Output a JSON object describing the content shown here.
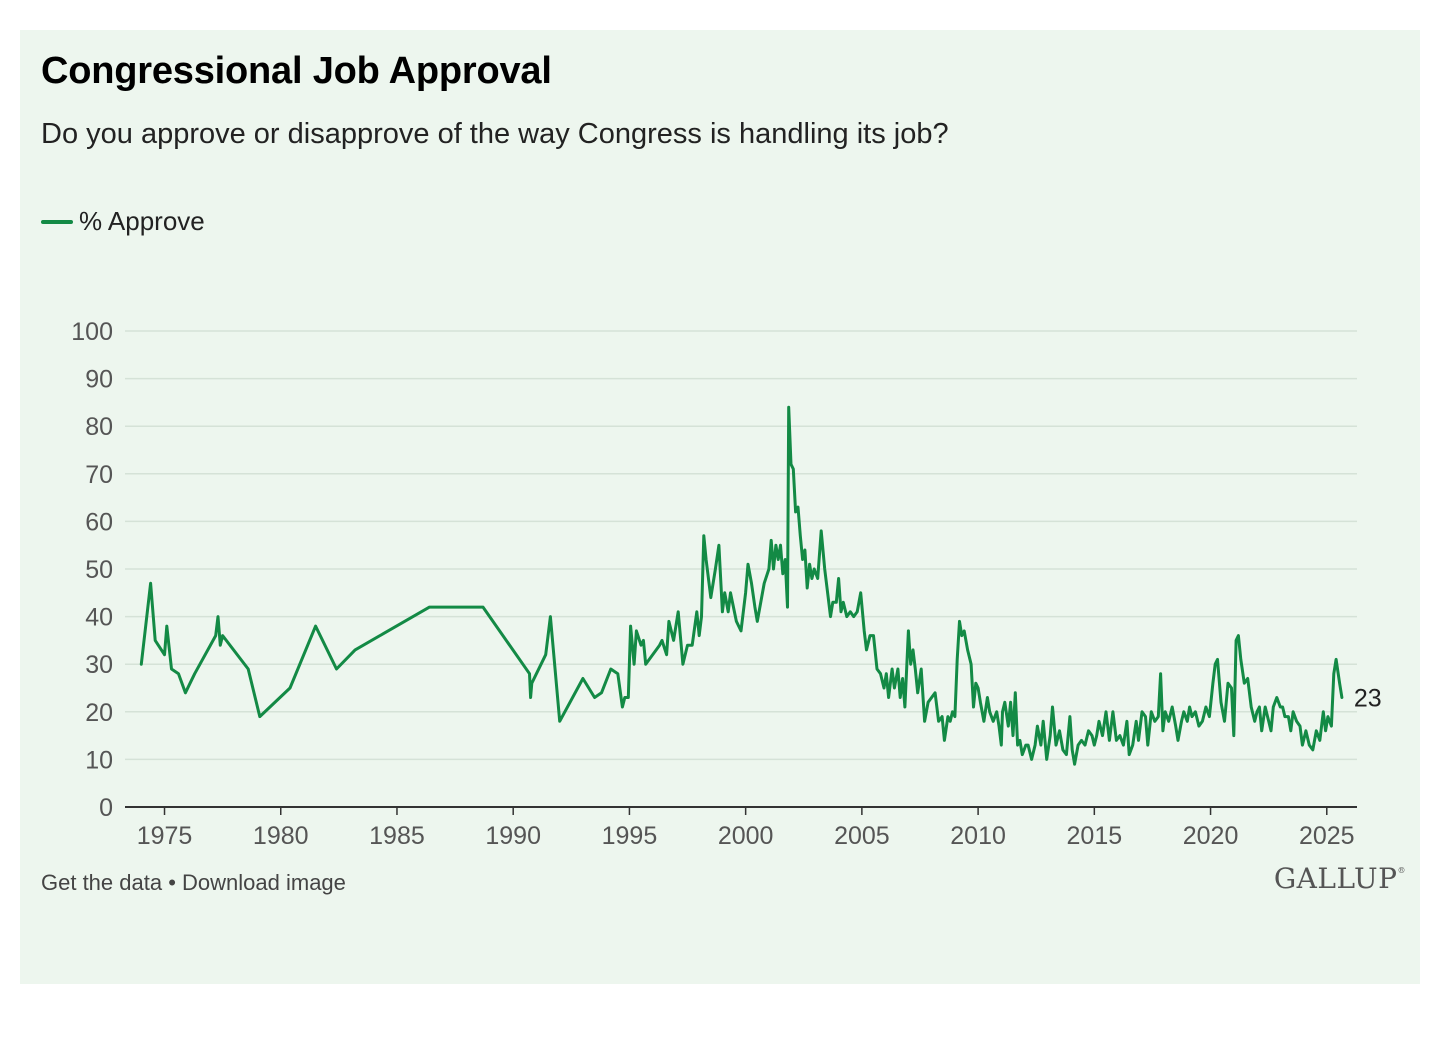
{
  "card": {
    "title": "Congressional Job Approval",
    "subtitle": "Do you approve or disapprove of the way Congress is handling its job?",
    "legend_label": "% Approve",
    "footer": {
      "get_data": "Get the data",
      "separator": " • ",
      "download": "Download image"
    },
    "logo_text": "GALLUP",
    "logo_mark": "®"
  },
  "colors": {
    "background": "#edf6ee",
    "series": "#138a45",
    "grid": "#d5e2d7",
    "axis": "#333333",
    "tick_text": "#555555"
  },
  "chart_data": {
    "type": "line",
    "title": "Congressional Job Approval",
    "xlabel": "",
    "ylabel": "",
    "xlim": [
      1973.3,
      2026.3
    ],
    "ylim": [
      0,
      100
    ],
    "yticks": [
      0,
      10,
      20,
      30,
      40,
      50,
      60,
      70,
      80,
      90,
      100
    ],
    "xticks": [
      1975,
      1980,
      1985,
      1990,
      1995,
      2000,
      2005,
      2010,
      2015,
      2020,
      2025
    ],
    "grid": true,
    "legend_position": "top-left",
    "end_label": "23",
    "series": [
      {
        "name": "% Approve",
        "points": [
          [
            1974.0,
            30
          ],
          [
            1974.4,
            47
          ],
          [
            1974.6,
            35
          ],
          [
            1975.0,
            32
          ],
          [
            1975.1,
            38
          ],
          [
            1975.3,
            29
          ],
          [
            1975.6,
            28
          ],
          [
            1975.9,
            24
          ],
          [
            1976.3,
            28
          ],
          [
            1977.2,
            36
          ],
          [
            1977.3,
            40
          ],
          [
            1977.4,
            34
          ],
          [
            1977.5,
            36
          ],
          [
            1978.6,
            29
          ],
          [
            1979.1,
            19
          ],
          [
            1980.4,
            25
          ],
          [
            1981.5,
            38
          ],
          [
            1982.4,
            29
          ],
          [
            1983.2,
            33
          ],
          [
            1986.4,
            42
          ],
          [
            1988.7,
            42
          ],
          [
            1990.7,
            28
          ],
          [
            1990.75,
            23
          ],
          [
            1990.8,
            26
          ],
          [
            1991.4,
            32
          ],
          [
            1991.6,
            40
          ],
          [
            1992.0,
            18
          ],
          [
            1993.0,
            27
          ],
          [
            1993.5,
            23
          ],
          [
            1993.8,
            24
          ],
          [
            1994.2,
            29
          ],
          [
            1994.5,
            28
          ],
          [
            1994.7,
            21
          ],
          [
            1994.8,
            23
          ],
          [
            1994.95,
            23
          ],
          [
            1995.05,
            38
          ],
          [
            1995.2,
            30
          ],
          [
            1995.3,
            37
          ],
          [
            1995.5,
            34
          ],
          [
            1995.6,
            35
          ],
          [
            1995.7,
            30
          ],
          [
            1996.3,
            34
          ],
          [
            1996.4,
            35
          ],
          [
            1996.6,
            32
          ],
          [
            1996.7,
            39
          ],
          [
            1996.9,
            35
          ],
          [
            1997.1,
            41
          ],
          [
            1997.3,
            30
          ],
          [
            1997.5,
            34
          ],
          [
            1997.7,
            34
          ],
          [
            1997.9,
            41
          ],
          [
            1998.0,
            36
          ],
          [
            1998.1,
            40
          ],
          [
            1998.2,
            57
          ],
          [
            1998.3,
            52
          ],
          [
            1998.5,
            44
          ],
          [
            1998.7,
            50
          ],
          [
            1998.85,
            55
          ],
          [
            1999.0,
            41
          ],
          [
            1999.1,
            45
          ],
          [
            1999.25,
            41
          ],
          [
            1999.35,
            45
          ],
          [
            1999.6,
            39
          ],
          [
            1999.8,
            37
          ],
          [
            2000.0,
            45
          ],
          [
            2000.1,
            51
          ],
          [
            2000.25,
            47
          ],
          [
            2000.4,
            42
          ],
          [
            2000.5,
            39
          ],
          [
            2000.8,
            47
          ],
          [
            2001.0,
            50
          ],
          [
            2001.1,
            56
          ],
          [
            2001.2,
            50
          ],
          [
            2001.3,
            55
          ],
          [
            2001.4,
            52
          ],
          [
            2001.5,
            55
          ],
          [
            2001.6,
            49
          ],
          [
            2001.7,
            52
          ],
          [
            2001.8,
            42
          ],
          [
            2001.85,
            84
          ],
          [
            2001.95,
            72
          ],
          [
            2002.05,
            71
          ],
          [
            2002.15,
            62
          ],
          [
            2002.25,
            63
          ],
          [
            2002.35,
            57
          ],
          [
            2002.45,
            52
          ],
          [
            2002.55,
            54
          ],
          [
            2002.65,
            46
          ],
          [
            2002.75,
            51
          ],
          [
            2002.85,
            48
          ],
          [
            2002.95,
            50
          ],
          [
            2003.1,
            48
          ],
          [
            2003.25,
            58
          ],
          [
            2003.4,
            50
          ],
          [
            2003.55,
            44
          ],
          [
            2003.65,
            40
          ],
          [
            2003.75,
            43
          ],
          [
            2003.9,
            43
          ],
          [
            2004.0,
            48
          ],
          [
            2004.1,
            41
          ],
          [
            2004.2,
            43
          ],
          [
            2004.35,
            40
          ],
          [
            2004.5,
            41
          ],
          [
            2004.65,
            40
          ],
          [
            2004.8,
            41
          ],
          [
            2004.95,
            45
          ],
          [
            2005.1,
            37
          ],
          [
            2005.2,
            33
          ],
          [
            2005.35,
            36
          ],
          [
            2005.5,
            36
          ],
          [
            2005.65,
            29
          ],
          [
            2005.8,
            28
          ],
          [
            2005.95,
            25
          ],
          [
            2006.05,
            28
          ],
          [
            2006.15,
            23
          ],
          [
            2006.3,
            29
          ],
          [
            2006.4,
            25
          ],
          [
            2006.55,
            29
          ],
          [
            2006.65,
            23
          ],
          [
            2006.75,
            27
          ],
          [
            2006.85,
            21
          ],
          [
            2007.0,
            37
          ],
          [
            2007.1,
            30
          ],
          [
            2007.2,
            33
          ],
          [
            2007.3,
            29
          ],
          [
            2007.4,
            24
          ],
          [
            2007.55,
            29
          ],
          [
            2007.7,
            18
          ],
          [
            2007.85,
            22
          ],
          [
            2008.0,
            23
          ],
          [
            2008.15,
            24
          ],
          [
            2008.3,
            18
          ],
          [
            2008.45,
            19
          ],
          [
            2008.55,
            14
          ],
          [
            2008.7,
            19
          ],
          [
            2008.8,
            18
          ],
          [
            2008.9,
            20
          ],
          [
            2009.0,
            19
          ],
          [
            2009.1,
            31
          ],
          [
            2009.2,
            39
          ],
          [
            2009.3,
            36
          ],
          [
            2009.4,
            37
          ],
          [
            2009.55,
            33
          ],
          [
            2009.7,
            30
          ],
          [
            2009.8,
            21
          ],
          [
            2009.9,
            26
          ],
          [
            2010.0,
            25
          ],
          [
            2010.1,
            22
          ],
          [
            2010.25,
            18
          ],
          [
            2010.4,
            23
          ],
          [
            2010.5,
            20
          ],
          [
            2010.65,
            18
          ],
          [
            2010.8,
            20
          ],
          [
            2010.9,
            17
          ],
          [
            2011.0,
            13
          ],
          [
            2011.05,
            20
          ],
          [
            2011.15,
            22
          ],
          [
            2011.3,
            17
          ],
          [
            2011.4,
            22
          ],
          [
            2011.5,
            15
          ],
          [
            2011.6,
            24
          ],
          [
            2011.7,
            13
          ],
          [
            2011.8,
            14
          ],
          [
            2011.9,
            11
          ],
          [
            2012.05,
            13
          ],
          [
            2012.15,
            13
          ],
          [
            2012.3,
            10
          ],
          [
            2012.45,
            13
          ],
          [
            2012.55,
            17
          ],
          [
            2012.7,
            13
          ],
          [
            2012.8,
            18
          ],
          [
            2012.95,
            10
          ],
          [
            2013.1,
            15
          ],
          [
            2013.2,
            21
          ],
          [
            2013.35,
            13
          ],
          [
            2013.5,
            16
          ],
          [
            2013.65,
            12
          ],
          [
            2013.8,
            11
          ],
          [
            2013.95,
            19
          ],
          [
            2014.05,
            12
          ],
          [
            2014.15,
            9
          ],
          [
            2014.3,
            13
          ],
          [
            2014.45,
            14
          ],
          [
            2014.6,
            13
          ],
          [
            2014.75,
            16
          ],
          [
            2014.9,
            15
          ],
          [
            2015.0,
            13
          ],
          [
            2015.1,
            15
          ],
          [
            2015.2,
            18
          ],
          [
            2015.35,
            15
          ],
          [
            2015.5,
            20
          ],
          [
            2015.65,
            14
          ],
          [
            2015.8,
            20
          ],
          [
            2015.95,
            14
          ],
          [
            2016.1,
            15
          ],
          [
            2016.25,
            13
          ],
          [
            2016.4,
            18
          ],
          [
            2016.5,
            11
          ],
          [
            2016.65,
            13
          ],
          [
            2016.8,
            18
          ],
          [
            2016.9,
            14
          ],
          [
            2017.05,
            20
          ],
          [
            2017.2,
            19
          ],
          [
            2017.3,
            13
          ],
          [
            2017.45,
            20
          ],
          [
            2017.6,
            18
          ],
          [
            2017.75,
            19
          ],
          [
            2017.85,
            28
          ],
          [
            2017.95,
            16
          ],
          [
            2018.05,
            20
          ],
          [
            2018.2,
            18
          ],
          [
            2018.35,
            21
          ],
          [
            2018.5,
            17
          ],
          [
            2018.6,
            14
          ],
          [
            2018.75,
            18
          ],
          [
            2018.85,
            20
          ],
          [
            2019.0,
            18
          ],
          [
            2019.1,
            21
          ],
          [
            2019.2,
            19
          ],
          [
            2019.35,
            20
          ],
          [
            2019.5,
            17
          ],
          [
            2019.65,
            18
          ],
          [
            2019.8,
            21
          ],
          [
            2019.95,
            19
          ],
          [
            2020.1,
            26
          ],
          [
            2020.2,
            30
          ],
          [
            2020.3,
            31
          ],
          [
            2020.45,
            22
          ],
          [
            2020.6,
            18
          ],
          [
            2020.75,
            26
          ],
          [
            2020.9,
            25
          ],
          [
            2021.0,
            15
          ],
          [
            2021.1,
            35
          ],
          [
            2021.2,
            36
          ],
          [
            2021.3,
            31
          ],
          [
            2021.45,
            26
          ],
          [
            2021.6,
            27
          ],
          [
            2021.75,
            21
          ],
          [
            2021.9,
            18
          ],
          [
            2022.0,
            20
          ],
          [
            2022.1,
            21
          ],
          [
            2022.2,
            16
          ],
          [
            2022.35,
            21
          ],
          [
            2022.5,
            18
          ],
          [
            2022.6,
            16
          ],
          [
            2022.7,
            21
          ],
          [
            2022.85,
            23
          ],
          [
            2023.0,
            21
          ],
          [
            2023.1,
            21
          ],
          [
            2023.2,
            19
          ],
          [
            2023.35,
            19
          ],
          [
            2023.45,
            16
          ],
          [
            2023.55,
            20
          ],
          [
            2023.7,
            18
          ],
          [
            2023.85,
            17
          ],
          [
            2023.95,
            13
          ],
          [
            2024.1,
            16
          ],
          [
            2024.25,
            13
          ],
          [
            2024.4,
            12
          ],
          [
            2024.55,
            16
          ],
          [
            2024.7,
            14
          ],
          [
            2024.85,
            20
          ],
          [
            2024.95,
            16
          ],
          [
            2025.05,
            19
          ],
          [
            2025.2,
            17
          ],
          [
            2025.3,
            28
          ],
          [
            2025.4,
            31
          ],
          [
            2025.55,
            26
          ],
          [
            2025.65,
            23
          ]
        ]
      }
    ]
  }
}
